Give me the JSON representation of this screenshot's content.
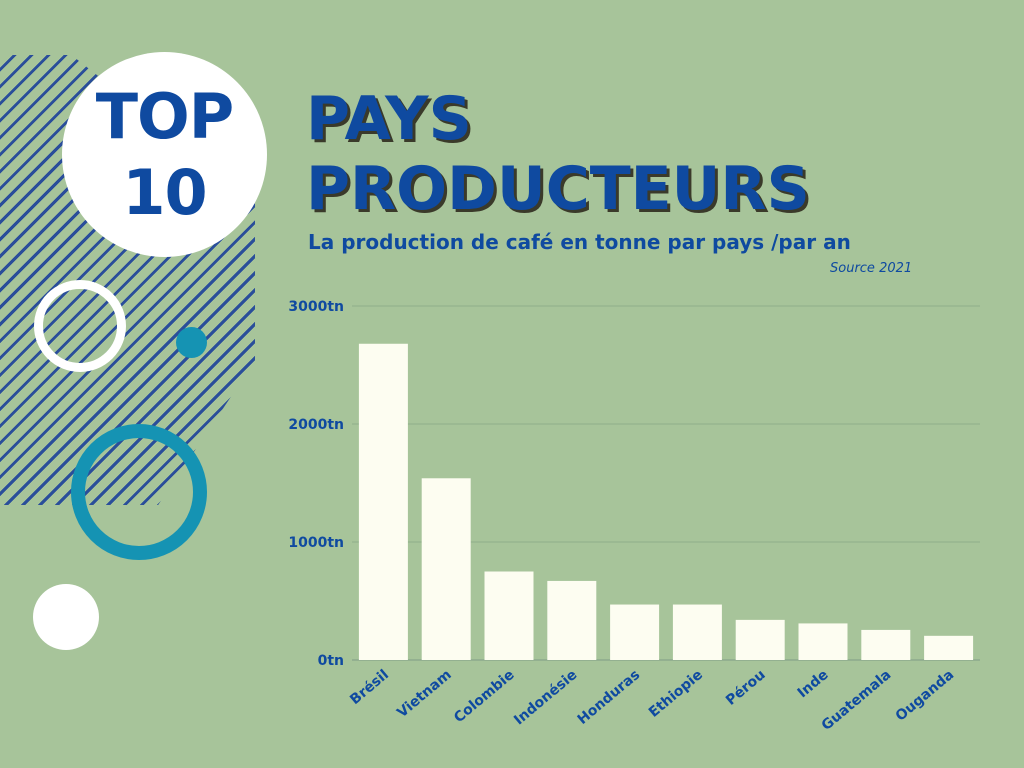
{
  "badge": {
    "line1": "TOP",
    "line2": "10"
  },
  "header": {
    "title_line1": "PAYS",
    "title_line2": "PRODUCTEURS",
    "subtitle": "La production de café en tonne par pays /par an",
    "source": "Source 2021"
  },
  "colors": {
    "background": "#a7c49a",
    "accent_blue": "#0f4aa0",
    "teal": "#1593b3",
    "bar": "#fdfdf1"
  },
  "chart_data": {
    "type": "bar",
    "categories": [
      "Brésil",
      "Vietnam",
      "Colombie",
      "Indonésie",
      "Honduras",
      "Ethiopie",
      "Pérou",
      "Inde",
      "Guatemala",
      "Ouganda"
    ],
    "values": [
      2680,
      1540,
      750,
      670,
      470,
      470,
      340,
      310,
      255,
      205
    ],
    "ylim": [
      0,
      3000
    ],
    "yticks": [
      0,
      1000,
      2000,
      3000
    ],
    "ytick_labels": [
      "0tn",
      "1000tn",
      "2000tn",
      "3000tn"
    ],
    "grid": true
  }
}
